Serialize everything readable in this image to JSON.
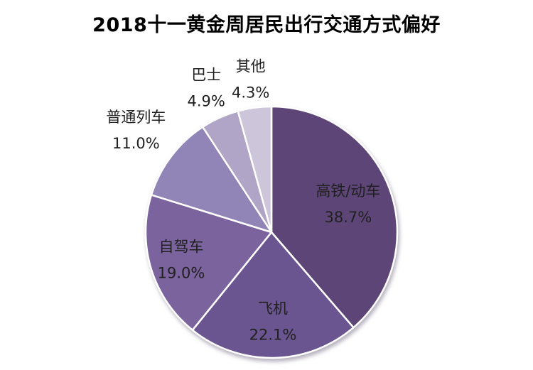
{
  "title": "2018十一黄金周居民出行交通方式偏好",
  "chart_data": {
    "type": "pie",
    "title": "2018十一黄金周居民出行交通方式偏好",
    "value_unit": "%",
    "direction": "clockwise",
    "start_angle_deg": 0,
    "total": 100.0,
    "border_color": "#ffffff",
    "label_color": "#202020",
    "background_color": "#ffffff",
    "slices": [
      {
        "label": "高铁/动车",
        "value": 38.7,
        "display": "38.7%",
        "color": "#5d4677",
        "label_placement": "inside",
        "label_radius_factor": 0.65
      },
      {
        "label": "飞机",
        "value": 22.1,
        "display": "22.1%",
        "color": "#6a5591",
        "label_placement": "inside",
        "label_radius_factor": 0.71
      },
      {
        "label": "自驾车",
        "value": 19.0,
        "display": "19.0%",
        "color": "#7b639e",
        "label_placement": "inside",
        "label_radius_factor": 0.75
      },
      {
        "label": "普通列车",
        "value": 11.0,
        "display": "11.0%",
        "color": "#9184b6",
        "label_placement": "outside",
        "label_radius_factor": 1.35
      },
      {
        "label": "巴士",
        "value": 4.9,
        "display": "4.9%",
        "color": "#b0a5c6",
        "label_placement": "outside",
        "label_radius_factor": 1.26
      },
      {
        "label": "其他",
        "value": 4.3,
        "display": "4.3%",
        "color": "#cdc6da",
        "label_placement": "outside",
        "label_radius_factor": 1.23
      }
    ]
  }
}
